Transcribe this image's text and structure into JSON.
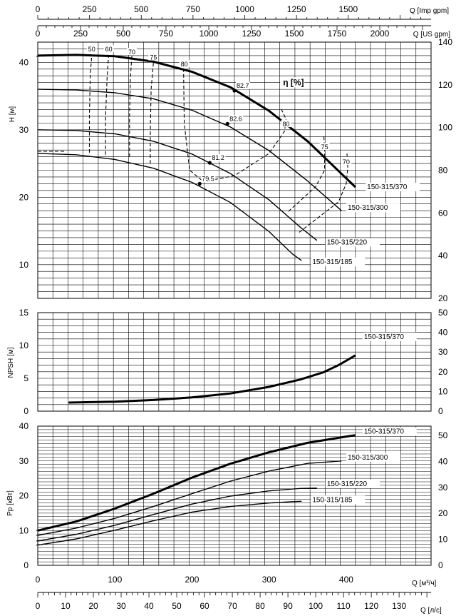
{
  "chart_data": {
    "type": "line",
    "top_axes": {
      "imp_gpm": {
        "label": "Q [Imp gpm]",
        "ticks": [
          0,
          250,
          500,
          750,
          1000,
          1250,
          1500
        ],
        "range": [
          0,
          1900
        ]
      },
      "us_gpm": {
        "label": "Q [US gpm]",
        "ticks": [
          0,
          250,
          500,
          750,
          1000,
          1250,
          1500,
          1750,
          2000
        ],
        "range": [
          0,
          2300
        ]
      }
    },
    "bottom_axes": {
      "m3h": {
        "label": "Q [м³/ч]",
        "ticks": [
          0,
          100,
          200,
          300,
          400
        ],
        "range": [
          0,
          510
        ]
      },
      "ls": {
        "label": "Q [л/с]",
        "ticks": [
          0,
          10,
          20,
          30,
          40,
          50,
          60,
          70,
          80,
          90,
          100,
          110,
          120,
          130
        ],
        "range": [
          0,
          141.5
        ]
      }
    },
    "head_panel": {
      "ylabel": "H [м]",
      "ylim": [
        5,
        43
      ],
      "yticks": [
        10,
        20,
        30,
        40
      ],
      "right_ylabel": "",
      "right_ylim": [
        20,
        140
      ],
      "right_yticks": [
        20,
        40,
        60,
        80,
        100,
        120,
        140
      ],
      "series": [
        {
          "name": "150-315/370",
          "bold": true,
          "x": [
            0,
            50,
            100,
            150,
            200,
            250,
            300,
            350,
            400,
            412
          ],
          "y": [
            41,
            41.1,
            40.9,
            40.1,
            38.6,
            36.3,
            32.8,
            28.3,
            22.8,
            21.5
          ]
        },
        {
          "name": "150-315/300",
          "bold": false,
          "x": [
            0,
            50,
            100,
            150,
            200,
            250,
            300,
            350,
            394
          ],
          "y": [
            36,
            35.9,
            35.5,
            34.6,
            32.9,
            30.4,
            26.9,
            22.4,
            18
          ]
        },
        {
          "name": "150-315/220",
          "bold": false,
          "x": [
            0,
            50,
            100,
            150,
            200,
            250,
            300,
            340,
            362
          ],
          "y": [
            30,
            29.9,
            29.4,
            28.3,
            26.4,
            23.5,
            19.6,
            15.6,
            13.6
          ]
        },
        {
          "name": "150-315/185",
          "bold": false,
          "x": [
            0,
            50,
            100,
            150,
            200,
            250,
            300,
            330,
            342
          ],
          "y": [
            26.5,
            26.3,
            25.6,
            24.3,
            22.2,
            19.2,
            14.9,
            11.6,
            10.6
          ]
        }
      ],
      "efficiency_label": "η [%]",
      "efficiency_contours": [
        {
          "label": "50",
          "x": [
            67,
            67,
            68,
            70
          ],
          "y": [
            26.6,
            32,
            38,
            41.1
          ]
        },
        {
          "label": "60",
          "x": [
            88,
            88,
            90,
            92
          ],
          "y": [
            26.3,
            32,
            38,
            41.1
          ]
        },
        {
          "label": "70",
          "x": [
            119,
            119,
            120,
            122
          ],
          "y": [
            26,
            32,
            37.5,
            40.9
          ]
        },
        {
          "label": "75",
          "x": [
            146,
            146,
            147,
            150
          ],
          "y": [
            25,
            30,
            36,
            40.1
          ]
        },
        {
          "label": "80",
          "x": [
            189,
            190,
            197,
            215,
            255,
            300,
            320,
            322,
            316
          ],
          "y": [
            39.1,
            31,
            24,
            22.3,
            23.2,
            26.5,
            29.8,
            31.6,
            33
          ]
        },
        {
          "label": "75",
          "x": [
            325,
            360,
            372,
            372,
            371
          ],
          "y": [
            17.9,
            21.5,
            24,
            27,
            29
          ]
        },
        {
          "label": "70",
          "x": [
            339,
            390,
            400,
            402,
            401
          ],
          "y": [
            14.8,
            19.3,
            22,
            24.5,
            26.5
          ]
        }
      ],
      "efficiency_labels": [
        {
          "text": "50",
          "x": 70,
          "y": 41.6
        },
        {
          "text": "60",
          "x": 92,
          "y": 41.6
        },
        {
          "text": "70",
          "x": 122,
          "y": 41.2
        },
        {
          "text": "75",
          "x": 150,
          "y": 40.4
        },
        {
          "text": "80",
          "x": 190,
          "y": 39.4
        },
        {
          "text": "80",
          "x": 322,
          "y": 30.5
        },
        {
          "text": "75",
          "x": 372,
          "y": 27.1
        },
        {
          "text": "70",
          "x": 400,
          "y": 24.9
        }
      ],
      "bep_points": [
        {
          "label": "82.7",
          "x": 255,
          "y": 35.8
        },
        {
          "label": "82.6",
          "x": 246,
          "y": 30.9
        },
        {
          "label": "81.2",
          "x": 223,
          "y": 25.1
        },
        {
          "label": "79.5",
          "x": 210,
          "y": 22
        }
      ],
      "curve_labels": [
        {
          "text": "150-315/370",
          "x": 427,
          "y": 21.2
        },
        {
          "text": "150-315/300",
          "x": 402,
          "y": 18.1
        },
        {
          "text": "150-315/220",
          "x": 375,
          "y": 13
        },
        {
          "text": "150-315/185",
          "x": 356,
          "y": 10.1
        }
      ]
    },
    "npsh_panel": {
      "ylabel": "NPSH [м]",
      "ylim": [
        0,
        15
      ],
      "yticks": [
        0,
        5,
        10,
        15
      ],
      "right_ylim": [
        0,
        50
      ],
      "right_yticks": [
        0,
        10,
        20,
        30,
        40,
        50
      ],
      "series": [
        {
          "name": "150-315/370",
          "x": [
            40,
            100,
            150,
            200,
            250,
            300,
            340,
            370,
            390,
            412
          ],
          "y": [
            1.3,
            1.45,
            1.7,
            2.1,
            2.7,
            3.7,
            4.8,
            5.9,
            7,
            8.5
          ]
        }
      ],
      "curve_label": {
        "text": "150-315/370",
        "x": 423,
        "y": 11
      }
    },
    "power_panel": {
      "ylabel": "Pp [кВт]",
      "ylim": [
        0,
        40
      ],
      "yticks": [
        0,
        10,
        20,
        30,
        40
      ],
      "right_ylim": [
        0,
        53.6
      ],
      "right_yticks": [
        0,
        10,
        20,
        30,
        40,
        50
      ],
      "series": [
        {
          "name": "150-315/370",
          "bold": true,
          "x": [
            0,
            50,
            100,
            150,
            200,
            250,
            300,
            350,
            400,
            412
          ],
          "y": [
            10,
            12.6,
            16.3,
            20.6,
            25.2,
            29.2,
            32.5,
            35.2,
            37,
            37.4
          ]
        },
        {
          "name": "150-315/300",
          "bold": false,
          "x": [
            0,
            50,
            100,
            150,
            200,
            250,
            300,
            350,
            394
          ],
          "y": [
            8.6,
            10.7,
            13.5,
            16.9,
            20.6,
            24.2,
            27.1,
            29.3,
            30
          ]
        },
        {
          "name": "150-315/220",
          "bold": false,
          "x": [
            0,
            50,
            100,
            150,
            200,
            250,
            300,
            340,
            362
          ],
          "y": [
            7,
            8.9,
            11.5,
            14.6,
            17.6,
            19.9,
            21.4,
            22.1,
            22.2
          ]
        },
        {
          "name": "150-315/185",
          "bold": false,
          "x": [
            0,
            50,
            100,
            150,
            200,
            250,
            300,
            330,
            342
          ],
          "y": [
            5.8,
            7.6,
            10.1,
            12.8,
            15.3,
            16.9,
            17.9,
            18.3,
            18.4
          ]
        }
      ],
      "curve_labels": [
        {
          "text": "150-315/370",
          "x": 423,
          "y": 37.8
        },
        {
          "text": "150-315/300",
          "x": 402,
          "y": 30.4
        },
        {
          "text": "150-315/220",
          "x": 375,
          "y": 22.8
        },
        {
          "text": "150-315/185",
          "x": 356,
          "y": 18.2
        }
      ]
    }
  }
}
